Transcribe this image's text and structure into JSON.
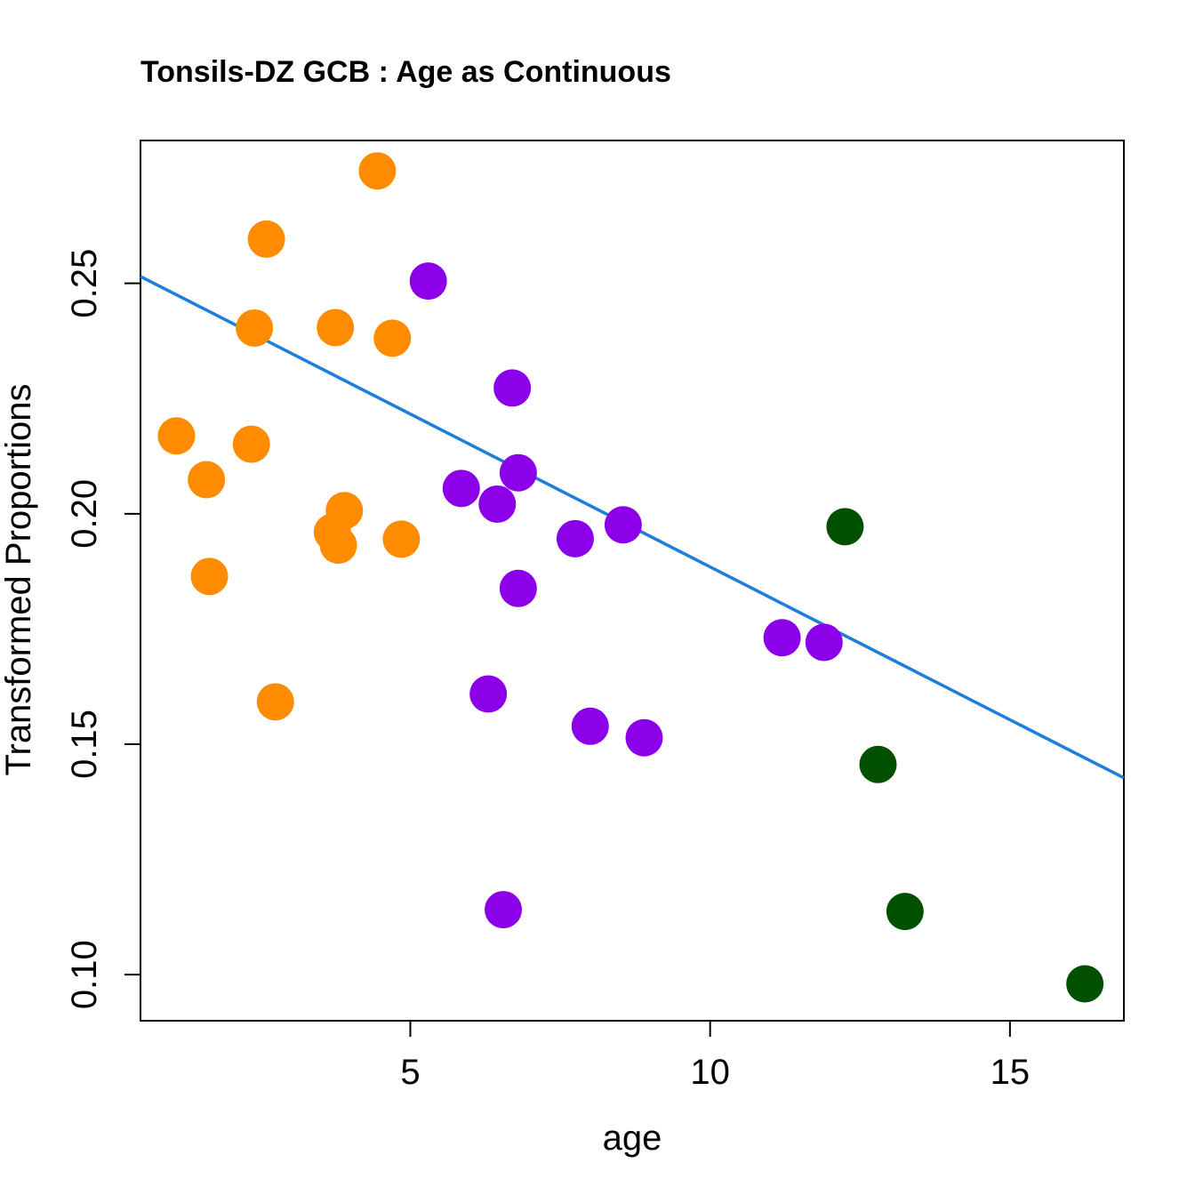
{
  "chart_data": {
    "type": "scatter",
    "title": "Tonsils-DZ GCB : Age as Continuous",
    "xlabel": "age",
    "ylabel": "Transformed Proportions",
    "xlim": [
      0.5,
      16.9
    ],
    "ylim": [
      0.09,
      0.281
    ],
    "xticks": [
      5,
      10,
      15
    ],
    "yticks": [
      0.1,
      0.15,
      0.2,
      0.25
    ],
    "xtick_labels": [
      "5",
      "10",
      "15"
    ],
    "ytick_labels": [
      "0.10",
      "0.15",
      "0.20",
      "0.25"
    ],
    "grid": false,
    "legend": "none",
    "point_colors": {
      "orange": "#FF8C00",
      "purple": "#8B00E8",
      "green": "#005000"
    },
    "line_color": "#1E7FDB",
    "regression_line": {
      "x": [
        0.5,
        16.9
      ],
      "y": [
        0.2515,
        0.1427
      ]
    },
    "series": [
      {
        "color": "orange",
        "x": [
          4.45,
          2.6,
          2.4,
          3.75,
          4.7,
          1.1,
          1.6,
          2.35,
          3.9,
          3.7,
          3.8,
          4.85,
          1.65,
          2.75
        ],
        "y": [
          0.2744,
          0.2596,
          0.2403,
          0.2404,
          0.2381,
          0.2169,
          0.2074,
          0.2151,
          0.2007,
          0.196,
          0.1932,
          0.1945,
          0.1864,
          0.1592
        ]
      },
      {
        "color": "purple",
        "x": [
          5.3,
          6.7,
          6.8,
          5.85,
          6.45,
          8.55,
          7.75,
          6.8,
          11.2,
          11.9,
          6.3,
          8.0,
          8.9,
          6.55
        ],
        "y": [
          0.2505,
          0.2273,
          0.2089,
          0.2055,
          0.2021,
          0.1976,
          0.1946,
          0.1838,
          0.1731,
          0.1721,
          0.1609,
          0.1539,
          0.1514,
          0.1141
        ]
      },
      {
        "color": "green",
        "x": [
          12.25,
          12.8,
          13.25,
          16.25
        ],
        "y": [
          0.1972,
          0.1456,
          0.1137,
          0.098
        ]
      }
    ]
  }
}
